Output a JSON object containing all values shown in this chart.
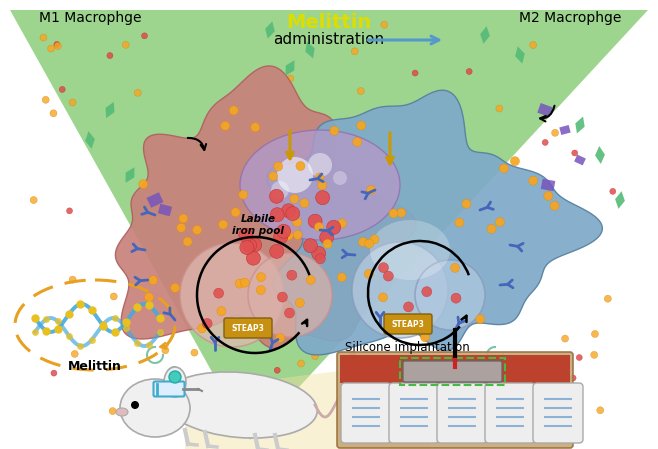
{
  "title_melittin": "Melittin",
  "title_admin": "administration",
  "label_m1": "M1 Macrophge",
  "label_m2": "M2 Macrophge",
  "label_labile": "Labile\niron pool",
  "label_steap3": "STEAP3",
  "label_silicone": "Silicone implantation",
  "label_melittin_circle": "Melittin",
  "bg_color": "#ffffff",
  "green_color": "#88cc77",
  "cell_m1_color": "#c8817a",
  "cell_m1_edge": "#b06060",
  "cell_m2_color": "#7eaac8",
  "cell_m2_edge": "#5580a0",
  "nucleus_color": "#b09ac8",
  "nucleus_edge": "#9070b0",
  "orange_dot_color": "#f5a623",
  "red_dot_color": "#e05050",
  "red_dot_edge": "#c03030",
  "melittin_circle_color": "#e8a020",
  "steap3_box_color": "#c89010",
  "steap3_box_edge": "#806010",
  "title_melittin_color": "#dddd00",
  "receptor_color": "#4466bb",
  "gold_arrow_color": "#cc9900",
  "implant_bg": "#c8a878",
  "implant_red": "#bb3322",
  "implant_gray": "#888888",
  "implant_green": "#44bb44",
  "vertebra_color": "#eeeeee",
  "vertebra_edge": "#aaaaaa",
  "vertebra_blue": "#6699cc",
  "mouse_color": "#f0f0f0",
  "mouse_edge": "#aaaaaa",
  "cone_color": "#f0e0a0",
  "green_diamond_color": "#55bb77",
  "purple_sq_color": "#7755bb",
  "teal_curl_color": "#44aa88",
  "admin_arrow_color": "#5599cc",
  "scatter_orange_color": "#f5a623",
  "scatter_red_color": "#dd4444",
  "white_glow_color": "#ffffff"
}
